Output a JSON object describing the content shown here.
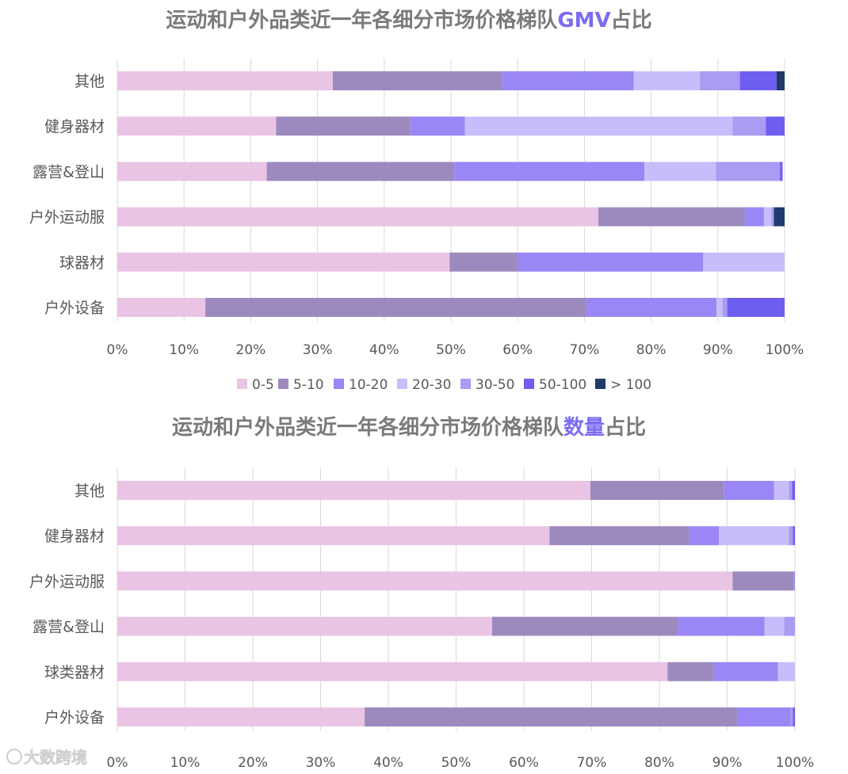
{
  "colors": {
    "0-5": "#eac4e4",
    "5-10": "#9c8abf",
    "10-20": "#9b86f5",
    "20-30": "#c8bdfa",
    "30-50": "#a99cf2",
    "50-100": "#6e5ef0",
    ">100": "#1f3a6b"
  },
  "watermark": "大数跨境",
  "chart_data": [
    {
      "type": "bar",
      "orientation": "horizontal",
      "stacked": "percent",
      "title_prefix": "运动和户外品类近一年各细分市场价格梯队",
      "title_highlight": "GMV",
      "title_suffix": "占比",
      "categories": [
        "其他",
        "健身器材",
        "露营&登山",
        "户外运动服",
        "球器材",
        "户外设备"
      ],
      "xlim": [
        0,
        100
      ],
      "xticks": [
        "0%",
        "10%",
        "20%",
        "30%",
        "40%",
        "50%",
        "60%",
        "70%",
        "80%",
        "90%",
        "100%"
      ],
      "grid": true,
      "legend": "bottom",
      "series": [
        {
          "name": "0-5",
          "values": [
            32.3,
            23.8,
            22.4,
            72.1,
            49.8,
            13.2
          ]
        },
        {
          "name": "5-10",
          "values": [
            25.4,
            20.1,
            28.1,
            21.9,
            10.2,
            57.1
          ]
        },
        {
          "name": "10-20",
          "values": [
            19.7,
            8.2,
            28.5,
            2.9,
            27.8,
            19.5
          ]
        },
        {
          "name": "20-30",
          "values": [
            9.9,
            40.1,
            10.7,
            1.1,
            12.2,
            0.9
          ]
        },
        {
          "name": "30-50",
          "values": [
            6.0,
            5.0,
            9.6,
            0.4,
            0.0,
            0.7
          ]
        },
        {
          "name": "50-100",
          "values": [
            5.5,
            2.8,
            0.4,
            0.0,
            0.0,
            8.6
          ]
        },
        {
          "name": "> 100",
          "values": [
            1.2,
            0.0,
            0.0,
            1.6,
            0.0,
            0.0
          ]
        }
      ]
    },
    {
      "type": "bar",
      "orientation": "horizontal",
      "stacked": "percent",
      "title_prefix": "运动和户外品类近一年各细分市场价格梯队",
      "title_highlight": "数量",
      "title_suffix": "占比",
      "categories": [
        "其他",
        "健身器材",
        "户外运动服",
        "露营&登山",
        "球类器材",
        "户外设备"
      ],
      "xlim": [
        0,
        100
      ],
      "xticks": [
        "0%",
        "10%",
        "20%",
        "30%",
        "40%",
        "50%",
        "60%",
        "70%",
        "80%",
        "90%",
        "100%"
      ],
      "grid": true,
      "series": [
        {
          "name": "0-5",
          "values": [
            69.8,
            63.8,
            90.8,
            55.3,
            81.2,
            36.5
          ]
        },
        {
          "name": "5-10",
          "values": [
            19.7,
            20.6,
            9.0,
            27.4,
            6.8,
            55.0
          ]
        },
        {
          "name": "10-20",
          "values": [
            7.4,
            4.4,
            0.2,
            12.8,
            9.5,
            7.8
          ]
        },
        {
          "name": "20-30",
          "values": [
            2.2,
            10.3,
            0.0,
            2.9,
            2.5,
            0.0
          ]
        },
        {
          "name": "30-50",
          "values": [
            0.5,
            0.6,
            0.0,
            1.6,
            0.0,
            0.4
          ]
        },
        {
          "name": "50-100",
          "values": [
            0.4,
            0.3,
            0.0,
            0.0,
            0.0,
            0.3
          ]
        },
        {
          "name": "> 100",
          "values": [
            0.0,
            0.0,
            0.0,
            0.0,
            0.0,
            0.0
          ]
        }
      ]
    }
  ]
}
